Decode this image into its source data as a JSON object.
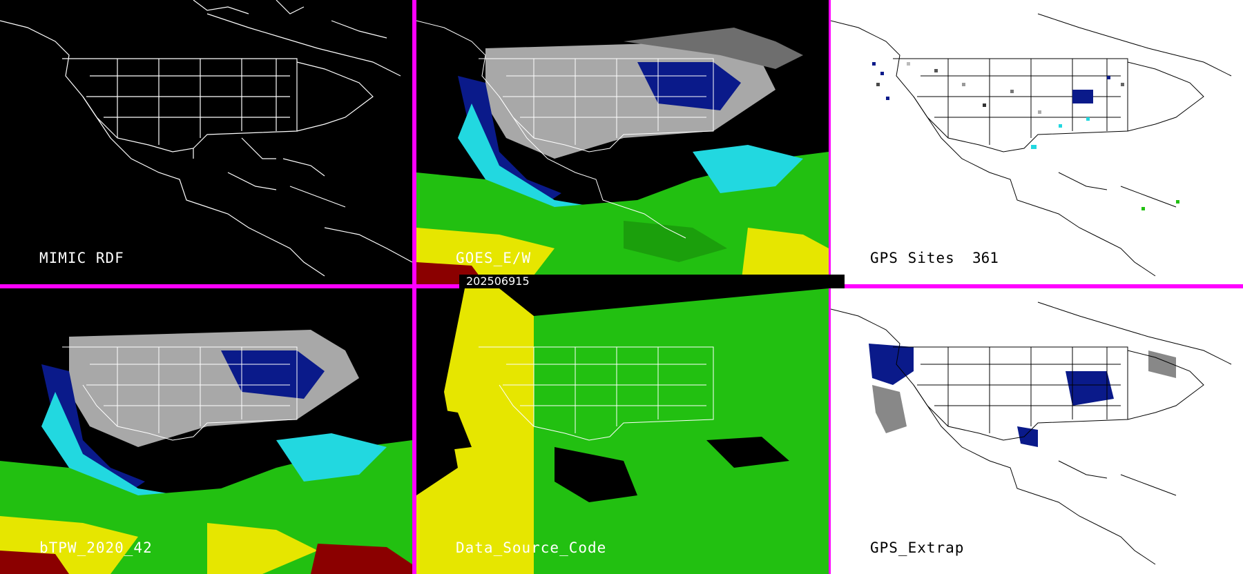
{
  "panels": {
    "rdf": {
      "label": "MIMIC RDF"
    },
    "goes": {
      "label": "GOES_E/W"
    },
    "gps": {
      "label": "GPS Sites",
      "count": "361"
    },
    "btpw": {
      "label": "bTPW_2020_42"
    },
    "dsc": {
      "label": "Data_Source_Code"
    },
    "gpse": {
      "label": "GPS_Extrap"
    }
  },
  "timestamp": "202506915",
  "colors": {
    "frame": "#ff00ff",
    "coast_dark": "#ffffff",
    "coast_light": "#000000",
    "dry_gray": "#9a9a9a",
    "moist_blue": "#0a1a8a",
    "cyan": "#22d8e0",
    "green": "#22c011",
    "yellow": "#e6e600",
    "dark_red": "#8b0000"
  }
}
